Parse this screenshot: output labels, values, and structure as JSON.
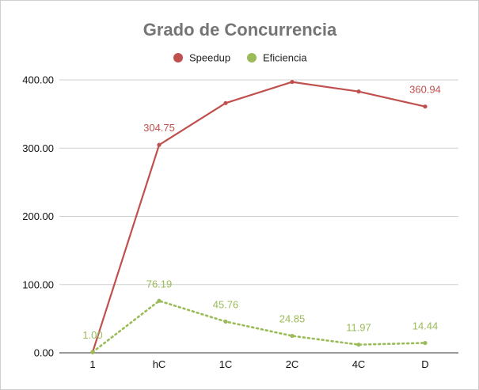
{
  "chart_data": {
    "type": "line",
    "title": "Grado de Concurrencia",
    "xlabel": "",
    "ylabel": "",
    "categories": [
      "1",
      "hC",
      "1C",
      "2C",
      "4C",
      "D"
    ],
    "ylim": [
      0,
      400
    ],
    "yticks": [
      "0.00",
      "100.00",
      "200.00",
      "300.00",
      "400.00"
    ],
    "grid": true,
    "legend_position": "top-center",
    "series": [
      {
        "name": "Speedup",
        "color": "#c0504d",
        "style": "solid",
        "values": [
          1.0,
          304.75,
          366,
          397,
          383,
          360.94
        ],
        "labels": [
          "",
          "304.75",
          "",
          "",
          "",
          "360.94"
        ]
      },
      {
        "name": "Eficiencia",
        "color": "#9bbb59",
        "style": "dotted",
        "values": [
          1.0,
          76.19,
          45.76,
          24.85,
          11.97,
          14.44
        ],
        "labels": [
          "1.00",
          "76.19",
          "45.76",
          "24.85",
          "11.97",
          "14.44"
        ]
      }
    ]
  },
  "title_color": "#757575"
}
